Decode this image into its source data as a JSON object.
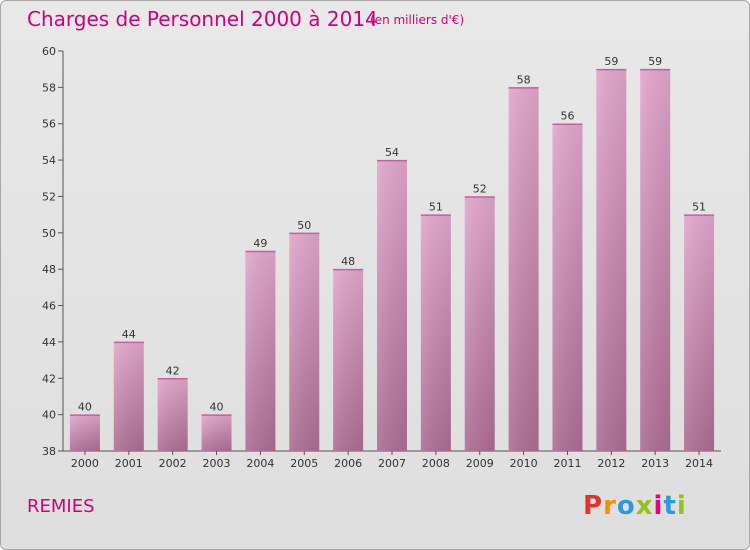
{
  "header": {
    "title": "Charges de Personnel 2000 à 2014",
    "subtitle": "(en milliers d'€)"
  },
  "footer": {
    "commune": "REMIES",
    "brand_letters": [
      "P",
      "r",
      "o",
      "x",
      "i",
      "t",
      "i"
    ],
    "brand_colors": [
      "#e6332a",
      "#f39200",
      "#2b9ad6",
      "#95c11f",
      "#e6007e",
      "#2b9ad6",
      "#95c11f"
    ]
  },
  "colors": {
    "accent": "#d1007a",
    "bar_top": "#e2a6cb",
    "bar_bottom": "#b07095",
    "axis": "#555555"
  },
  "chart_data": {
    "type": "bar",
    "categories": [
      "2000",
      "2001",
      "2002",
      "2003",
      "2004",
      "2005",
      "2006",
      "2007",
      "2008",
      "2009",
      "2010",
      "2011",
      "2012",
      "2013",
      "2014"
    ],
    "values": [
      40,
      44,
      42,
      40,
      49,
      50,
      48,
      54,
      51,
      52,
      58,
      56,
      59,
      59,
      51
    ],
    "ylim": [
      38,
      60
    ],
    "yticks": [
      38,
      40,
      42,
      44,
      46,
      48,
      50,
      52,
      54,
      56,
      58,
      60
    ],
    "grid": false,
    "legend": "none"
  }
}
